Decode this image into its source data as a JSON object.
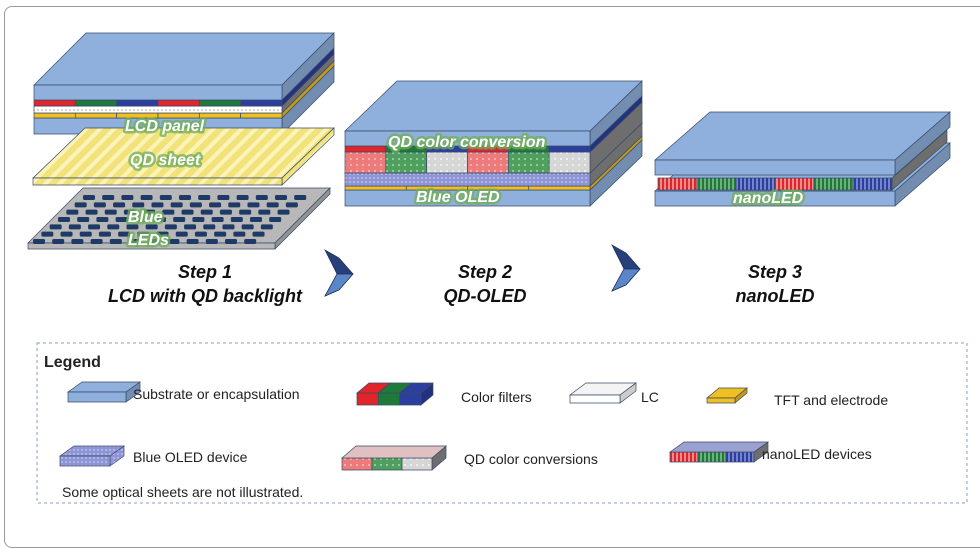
{
  "steps": [
    {
      "title": "Step 1",
      "subtitle": "LCD with QD backlight",
      "labels": [
        "LCD panel",
        "QD sheet",
        "Blue",
        "LEDs"
      ]
    },
    {
      "title": "Step 2",
      "subtitle": "QD-OLED",
      "labels": [
        "QD color conversion",
        "Blue OLED"
      ]
    },
    {
      "title": "Step 3",
      "subtitle": "nanoLED",
      "labels": [
        "nanoLED"
      ]
    }
  ],
  "legend": {
    "title": "Legend",
    "items": [
      "Substrate or encapsulation",
      "Color filters",
      "LC",
      "TFT and electrode",
      "Blue OLED device",
      "QD color conversions",
      "nanoLED devices"
    ],
    "note": "Some optical sheets are not illustrated."
  },
  "colors": {
    "substrate": "#8fb0dc",
    "red": "#e0252b",
    "green": "#1f7a3a",
    "blue": "#2c3e9e",
    "tft": "#f0c020",
    "qd_sheet": "#f2e27a",
    "led_plate": "#b8b8b8",
    "arrow": "#27407a"
  }
}
